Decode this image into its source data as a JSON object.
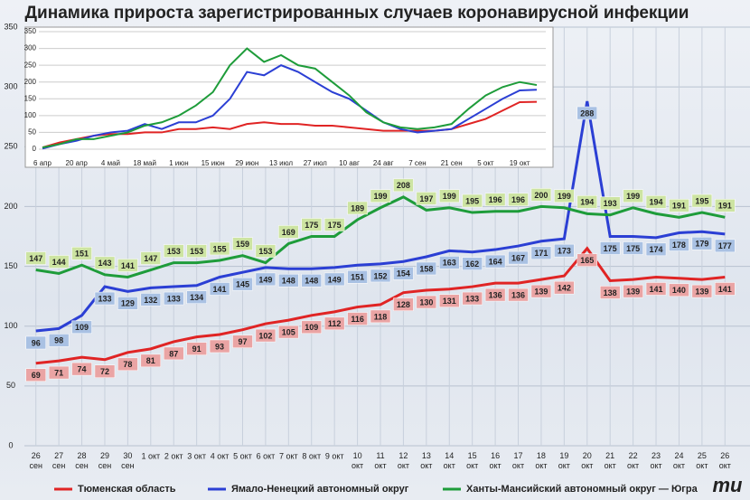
{
  "chart_data": [
    {
      "type": "line",
      "title": "Динамика прироста зарегистрированных случаев коронавирусной инфекции",
      "categories": [
        "26 сен",
        "27 сен",
        "28 сен",
        "29 сен",
        "30 сен",
        "1 окт",
        "2 окт",
        "3 окт",
        "4 окт",
        "5 окт",
        "6 окт",
        "7 окт",
        "8 окт",
        "9 окт",
        "10 окт",
        "11 окт",
        "12 окт",
        "13 окт",
        "14 окт",
        "15 окт",
        "16 окт",
        "17 окт",
        "18 окт",
        "19 окт",
        "20 окт",
        "21 окт",
        "22 окт",
        "23 окт",
        "24 окт",
        "25 окт",
        "26 окт"
      ],
      "series": [
        {
          "name": "Тюменская область",
          "color": "#e02424",
          "values": [
            69,
            71,
            74,
            72,
            78,
            81,
            87,
            91,
            93,
            97,
            102,
            105,
            109,
            112,
            116,
            118,
            128,
            130,
            131,
            133,
            136,
            136,
            139,
            142,
            165,
            138,
            139,
            141,
            140,
            139,
            141
          ]
        },
        {
          "name": "Ямало-Ненецкий автономный округ",
          "color": "#2b3fd4",
          "values": [
            96,
            98,
            109,
            133,
            129,
            132,
            133,
            134,
            141,
            145,
            149,
            148,
            148,
            149,
            151,
            152,
            154,
            158,
            163,
            162,
            164,
            167,
            171,
            173,
            288,
            175,
            175,
            174,
            178,
            179,
            177
          ]
        },
        {
          "name": "Ханты-Мансийский автономный округ — Югра",
          "color": "#1e9c3a",
          "values": [
            147,
            144,
            151,
            143,
            141,
            147,
            153,
            153,
            155,
            159,
            153,
            169,
            175,
            175,
            189,
            199,
            208,
            197,
            199,
            195,
            196,
            196,
            200,
            199,
            194,
            193,
            199,
            194,
            191,
            195,
            191
          ]
        }
      ],
      "ylim": [
        0,
        350
      ],
      "yticks": [
        0,
        50,
        100,
        150,
        200,
        250,
        300,
        350
      ],
      "grid": true,
      "legend": "bottom"
    },
    {
      "type": "line",
      "categories": [
        "6 апр",
        null,
        "20 апр",
        null,
        "4 май",
        null,
        "18 май",
        null,
        "1 июн",
        null,
        "15 июн",
        null,
        "29 июн",
        null,
        "13 июл",
        null,
        "27 июл",
        null,
        "10 авг",
        null,
        "24 авг",
        null,
        "7 сен",
        null,
        "21 сен",
        null,
        "5 окт",
        null,
        "19 окт",
        null
      ],
      "series": [
        {
          "color": "#e02424",
          "values": [
            5,
            20,
            30,
            40,
            45,
            45,
            50,
            50,
            60,
            60,
            65,
            60,
            75,
            80,
            75,
            75,
            70,
            70,
            65,
            60,
            55,
            55,
            55,
            55,
            60,
            75,
            90,
            115,
            140,
            141
          ]
        },
        {
          "color": "#2b3fd4",
          "values": [
            2,
            15,
            25,
            40,
            50,
            55,
            75,
            60,
            80,
            80,
            100,
            150,
            230,
            220,
            250,
            230,
            200,
            170,
            150,
            115,
            80,
            60,
            50,
            55,
            60,
            90,
            120,
            150,
            175,
            177
          ]
        },
        {
          "color": "#1e9c3a",
          "values": [
            5,
            15,
            30,
            30,
            40,
            50,
            70,
            80,
            100,
            130,
            170,
            250,
            300,
            260,
            280,
            250,
            240,
            200,
            160,
            110,
            80,
            65,
            60,
            65,
            75,
            120,
            160,
            185,
            200,
            191
          ]
        }
      ],
      "ylim": [
        0,
        350
      ],
      "yticks": [
        0,
        50,
        100,
        150,
        200,
        250,
        300,
        350
      ],
      "grid": true
    }
  ]
}
